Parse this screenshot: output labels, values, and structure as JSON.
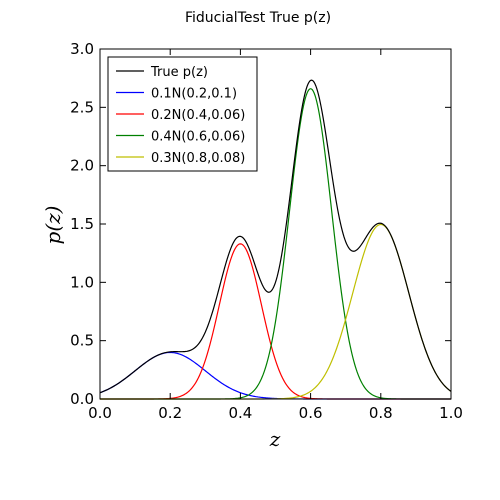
{
  "chart_data": {
    "type": "line",
    "title": "FiducialTest True p(z)",
    "xlabel": "z",
    "ylabel": "p(z)",
    "xlim": [
      0.0,
      1.0
    ],
    "ylim": [
      0.0,
      3.0
    ],
    "xticks": [
      "0.0",
      "0.2",
      "0.4",
      "0.6",
      "0.8",
      "1.0"
    ],
    "yticks": [
      "0.0",
      "0.5",
      "1.0",
      "1.5",
      "2.0",
      "2.5",
      "3.0"
    ],
    "grid": false,
    "legend_position": "top-left",
    "series": [
      {
        "name": "True p(z)",
        "color": "#000000",
        "is_total": true
      },
      {
        "name": "0.1N(0.2,0.1)",
        "color": "#0000ff",
        "weight": 0.1,
        "mean": 0.2,
        "sigma": 0.1
      },
      {
        "name": "0.2N(0.4,0.06)",
        "color": "#ff0000",
        "weight": 0.2,
        "mean": 0.4,
        "sigma": 0.06
      },
      {
        "name": "0.4N(0.6,0.06)",
        "color": "#008000",
        "weight": 0.4,
        "mean": 0.6,
        "sigma": 0.06
      },
      {
        "name": "0.3N(0.8,0.08)",
        "color": "#bfbf00",
        "weight": 0.3,
        "mean": 0.8,
        "sigma": 0.08
      }
    ]
  }
}
